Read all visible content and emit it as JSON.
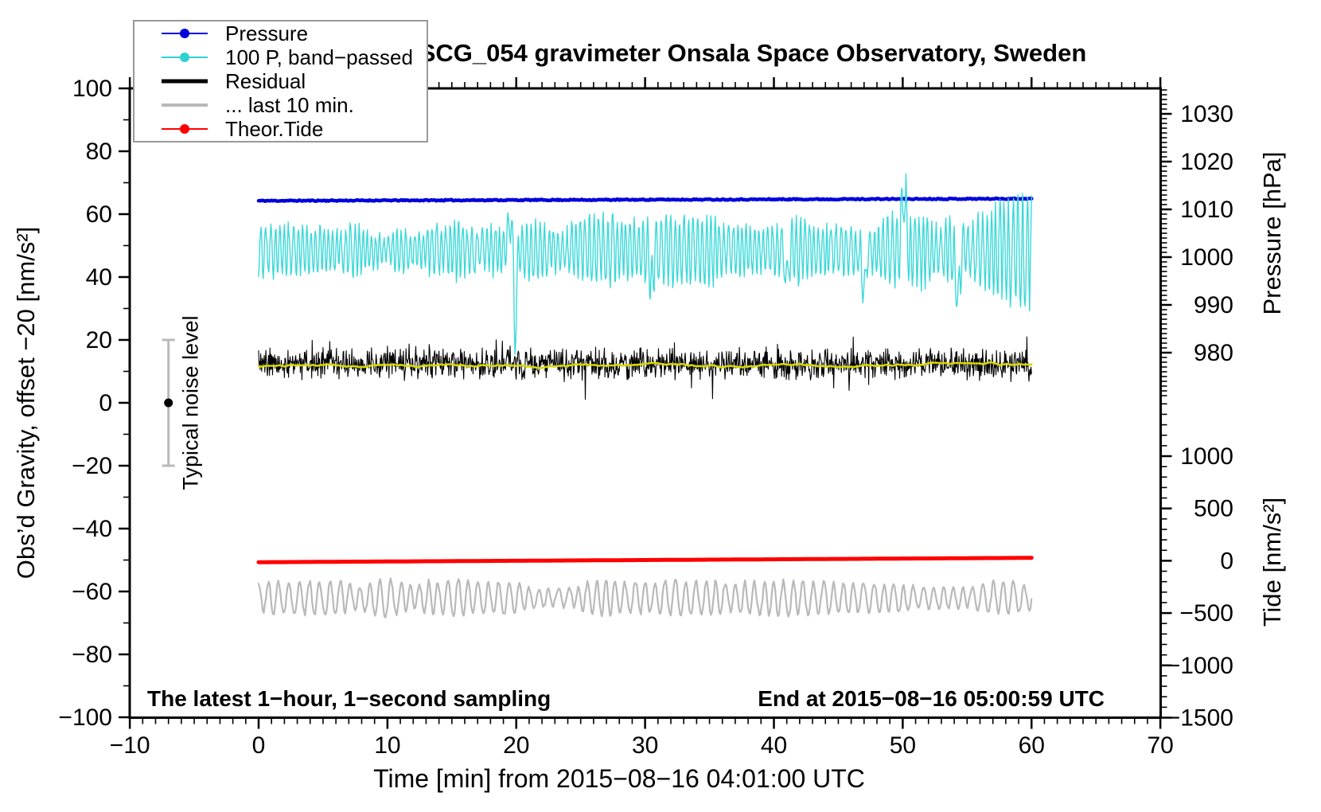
{
  "chart_data": {
    "type": "line",
    "title": "SCG_054 gravimeter Onsala Space Observatory, Sweden",
    "xlabel": "Time [min] from 2015−08−16 04:01:00 UTC",
    "annotations": {
      "sampling": "The latest 1−hour, 1−second sampling",
      "end": "End at 2015−08−16 05:00:59 UTC",
      "noise_label": "Typical noise level"
    },
    "axes": {
      "x": {
        "label": "Time [min] from 2015−08−16 04:01:00 UTC",
        "range": [
          -10,
          70
        ],
        "major_ticks": [
          -10,
          0,
          10,
          20,
          30,
          40,
          50,
          60,
          70
        ],
        "minor_step": 1
      },
      "gravity": {
        "label": "Obs’d Gravity, offset −20 [nm/s²]",
        "range": [
          -100,
          100
        ],
        "major_ticks": [
          -100,
          -80,
          -60,
          -40,
          -20,
          0,
          20,
          40,
          60,
          80,
          100
        ],
        "minor_step": 10
      },
      "pressure": {
        "label": "Pressure [hPa]",
        "range": [
          971,
          1035
        ],
        "major_ticks": [
          980,
          990,
          1000,
          1010,
          1020,
          1030
        ],
        "minor_step": 1
      },
      "tide": {
        "label": "Tide [nm/s²]",
        "range": [
          -1500,
          1500
        ],
        "major_ticks": [
          -1500,
          -1000,
          -500,
          0,
          500,
          1000
        ],
        "minor_step": 100
      }
    },
    "legend": [
      {
        "label": "Pressure",
        "color": "#0000dd",
        "marker": "dot",
        "line_width": 2
      },
      {
        "label": "100 P, band−passed",
        "color": "#2fd2d2",
        "marker": "dot",
        "line_width": 2
      },
      {
        "label": "Residual",
        "color": "#000000",
        "marker": "none",
        "line_width": 5
      },
      {
        "label": "... last 10 min.",
        "color": "#b9b9b9",
        "marker": "none",
        "line_width": 4
      },
      {
        "label": "Theor.Tide",
        "color": "#ff0000",
        "marker": "dot",
        "line_width": 2
      }
    ],
    "noise_bar": {
      "x_min": -7,
      "center": 0,
      "half_range": 20,
      "color": "#b9b9b9",
      "dot_color": "#000000"
    },
    "series": [
      {
        "name": "Pressure",
        "axis": "pressure",
        "color": "#0000dd",
        "width": 4.5,
        "kind": "trend",
        "t_range": [
          0,
          60
        ],
        "dt": 0.1,
        "start": 1011.8,
        "end": 1012.25,
        "jitter": 0.12,
        "seed": 11
      },
      {
        "name": "100 P, band−passed",
        "axis": "gravity",
        "color": "#3cd9d9",
        "width": 1.4,
        "kind": "osc",
        "t_range": [
          0,
          60
        ],
        "dt": 0.05,
        "center": 48.5,
        "amp": [
          4,
          11
        ],
        "phase_step": [
          0.55,
          1.25
        ],
        "late_amp_from": 47,
        "late_amp_rate": 0.05,
        "jitter": 1.5,
        "seed": 22,
        "spikes": [
          {
            "t": 19.55,
            "dv": 10,
            "w": 0.25
          },
          {
            "t": 19.9,
            "dv": -29,
            "w": 0.14
          },
          {
            "t": 30.5,
            "dv": -13,
            "w": 0.15
          },
          {
            "t": 41.0,
            "dv": -12,
            "w": 0.15
          },
          {
            "t": 47.0,
            "dv": -14,
            "w": 0.18
          },
          {
            "t": 50.1,
            "dv": 20,
            "w": 0.22
          },
          {
            "t": 54.3,
            "dv": -16,
            "w": 0.18
          }
        ]
      },
      {
        "name": "Residual",
        "axis": "gravity",
        "color": "#000000",
        "width": 1.1,
        "kind": "noise",
        "t_range": [
          0,
          60
        ],
        "dt": 0.04,
        "center": 12.3,
        "sigma": 3.8,
        "tail_p": 0.05,
        "tail_mult": 2.1,
        "seed": 33
      },
      {
        "name": "Residual smoothed",
        "axis": "gravity",
        "color": "#d6d600",
        "width": 2.6,
        "kind": "walk",
        "t_range": [
          0,
          60
        ],
        "dt": 0.2,
        "center": 11.9,
        "step": 0.55,
        "max_dev": 1.6,
        "seed": 44
      },
      {
        "name": "Theor.Tide",
        "axis": "tide",
        "color": "#ff0000",
        "width": 5,
        "kind": "trend",
        "t_range": [
          0,
          60
        ],
        "dt": 0.5,
        "start": -14,
        "end": 28,
        "jitter": 0,
        "seed": 55
      },
      {
        "name": "... last 10 min.",
        "axis": "gravity",
        "color": "#b9b9b9",
        "width": 2.2,
        "kind": "osc",
        "t_range": [
          0,
          60
        ],
        "dt": 0.08,
        "center": -62,
        "amp": [
          2.5,
          6.5
        ],
        "phase_step": [
          0.45,
          0.85
        ],
        "jitter": 0.5,
        "seed": 66,
        "spikes": []
      }
    ]
  }
}
